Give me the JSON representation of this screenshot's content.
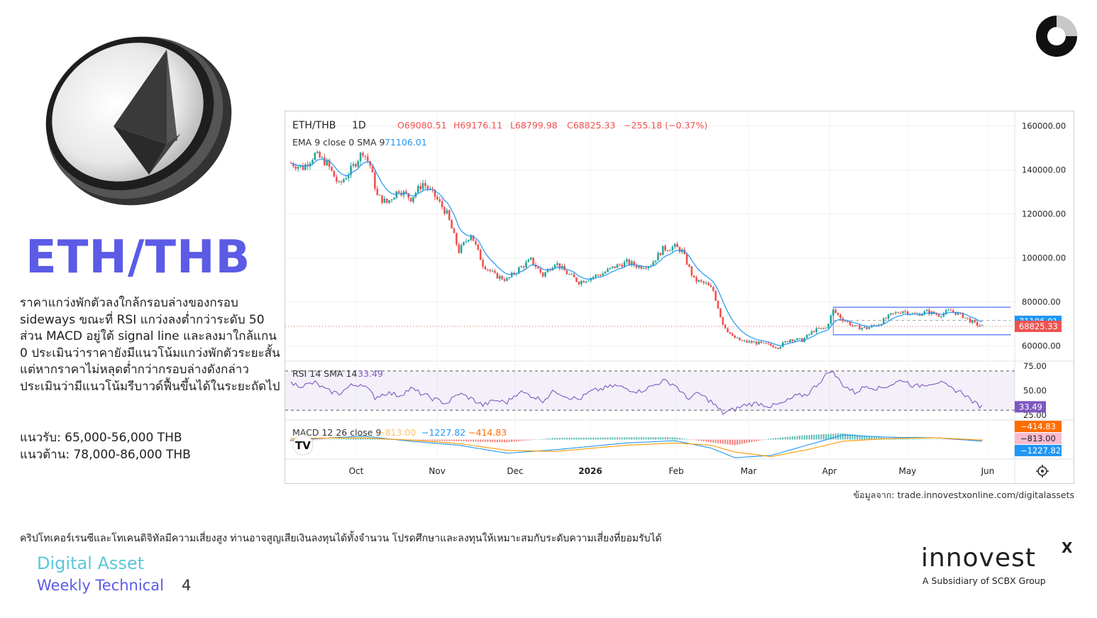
{
  "page": {
    "title": "ETH/THB",
    "description": "ราคาแกว่งพักตัวลงใกล้กรอบล่างของกรอบ sideways ขณะที่ RSI แกว่งลงต่ำกว่าระดับ 50 ส่วน MACD อยู่ใต้ signal line และลงมาใกล้แกน 0 ประเมินว่าราคายังมีแนวโน้มแกว่งพักตัวระยะสั้น แต่หากราคาไม่หลุดต่ำกว่ากรอบล่างดังกล่าว ประเมินว่ามีแนวโน้มรีบาวด์ฟื้นขึ้นได้ในระยะถัดไป",
    "support": "แนวรับ: 65,000-56,000 THB",
    "resistance": "แนวต้าน: 78,000-86,000 THB",
    "source": "ข้อมูลจาก: trade.innovestxonline.com/digitalassets",
    "disclaimer": "คริปโทเคอร์เรนซีและโทเคนดิจิทัลมีความเสี่ยงสูง ท่านอาจสูญเสียเงินลงทุนได้ทั้งจำนวน โปรดศึกษาและลงทุนให้เหมาะสมกับระดับความเสี่ยงที่ยอมรับได้",
    "footer_line1": "Digital Asset",
    "footer_line2": "Weekly Technical",
    "page_number": "4",
    "brand_name": "innovest",
    "brand_x": "X",
    "brand_tagline": "A Subsidiary of SCBX Group",
    "colors": {
      "title": "#5b5be6",
      "footer1": "#5cc6d8",
      "up": "#26a69a",
      "down": "#ef5350",
      "ema": "#2196f3"
    }
  },
  "chart_data": {
    "type": "candlestick",
    "symbol": "ETH/THB",
    "interval": "1D",
    "ohlc": {
      "open": "O69080.51",
      "high": "H69176.11",
      "low": "L68799.98",
      "close": "C68825.33",
      "change": "−255.18 (−0.37%)"
    },
    "ema_label": "EMA 9 close 0 SMA 9",
    "ema_value": "71106.01",
    "rsi_label": "RSI 14 SMA 14",
    "rsi_value": "33.49",
    "macd_label": "MACD 12 26 close 9",
    "macd_values": [
      "−813.00",
      "−1227.82",
      "−414.83"
    ],
    "price_axis": {
      "ticks": [
        "160000.00",
        "140000.00",
        "120000.00",
        "100000.00",
        "80000.00",
        "60000.00"
      ],
      "range": [
        53000,
        164000
      ]
    },
    "rsi_axis": {
      "ticks": [
        "75.00",
        "50.00",
        "25.00"
      ],
      "range": [
        20,
        80
      ],
      "bands": [
        30,
        70
      ]
    },
    "price_badges": {
      "ema": "71106.01",
      "last": "68825.33"
    },
    "rsi_badge": "33.49",
    "macd_badges": [
      "−414.83",
      "−813.00",
      "−1227.82"
    ],
    "x_ticks": [
      "Oct",
      "Nov",
      "Dec",
      "2026",
      "Feb",
      "Mar",
      "Apr",
      "May",
      "Jun"
    ],
    "sideways_range": {
      "top": 77500,
      "mid": 71500,
      "bottom": 65000
    },
    "price_path": [
      [
        0,
        143000
      ],
      [
        5,
        141000
      ],
      [
        10,
        147000
      ],
      [
        15,
        143000
      ],
      [
        20,
        133000
      ],
      [
        25,
        140000
      ],
      [
        30,
        148500
      ],
      [
        33,
        142000
      ],
      [
        36,
        128000
      ],
      [
        40,
        125000
      ],
      [
        45,
        131000
      ],
      [
        50,
        127000
      ],
      [
        55,
        134000
      ],
      [
        60,
        128000
      ],
      [
        65,
        120000
      ],
      [
        70,
        103000
      ],
      [
        75,
        111000
      ],
      [
        80,
        97000
      ],
      [
        85,
        92000
      ],
      [
        90,
        90000
      ],
      [
        95,
        95000
      ],
      [
        100,
        99000
      ],
      [
        105,
        92000
      ],
      [
        110,
        98000
      ],
      [
        115,
        93000
      ],
      [
        120,
        89000
      ],
      [
        125,
        91000
      ],
      [
        130,
        93000
      ],
      [
        135,
        96000
      ],
      [
        140,
        98000
      ],
      [
        145,
        96000
      ],
      [
        150,
        97000
      ],
      [
        155,
        104000
      ],
      [
        160,
        105000
      ],
      [
        163,
        103000
      ],
      [
        168,
        90000
      ],
      [
        173,
        88000
      ],
      [
        176,
        85000
      ],
      [
        180,
        70000
      ],
      [
        184,
        64000
      ],
      [
        188,
        62000
      ],
      [
        193,
        61500
      ],
      [
        198,
        60500
      ],
      [
        203,
        59500
      ],
      [
        208,
        63000
      ],
      [
        213,
        62500
      ],
      [
        218,
        67000
      ],
      [
        223,
        68000
      ],
      [
        226,
        76000
      ],
      [
        230,
        72000
      ],
      [
        235,
        68500
      ],
      [
        240,
        68000
      ],
      [
        245,
        70000
      ],
      [
        250,
        74000
      ],
      [
        255,
        76000
      ],
      [
        260,
        74000
      ],
      [
        265,
        75500
      ],
      [
        270,
        74000
      ],
      [
        275,
        76000
      ],
      [
        280,
        73500
      ],
      [
        285,
        70000
      ],
      [
        288,
        68825
      ]
    ],
    "rsi_path": [
      [
        0,
        57
      ],
      [
        5,
        55
      ],
      [
        10,
        58
      ],
      [
        15,
        50
      ],
      [
        20,
        47
      ],
      [
        25,
        55
      ],
      [
        30,
        57
      ],
      [
        35,
        43
      ],
      [
        40,
        48
      ],
      [
        45,
        45
      ],
      [
        50,
        52
      ],
      [
        55,
        46
      ],
      [
        60,
        41
      ],
      [
        65,
        37
      ],
      [
        70,
        47
      ],
      [
        75,
        42
      ],
      [
        80,
        35
      ],
      [
        85,
        40
      ],
      [
        90,
        38
      ],
      [
        95,
        49
      ],
      [
        100,
        45
      ],
      [
        105,
        40
      ],
      [
        110,
        50
      ],
      [
        115,
        44
      ],
      [
        120,
        41
      ],
      [
        125,
        49
      ],
      [
        130,
        52
      ],
      [
        135,
        55
      ],
      [
        140,
        52
      ],
      [
        145,
        49
      ],
      [
        150,
        54
      ],
      [
        155,
        60
      ],
      [
        160,
        56
      ],
      [
        165,
        42
      ],
      [
        170,
        47
      ],
      [
        175,
        39
      ],
      [
        180,
        27
      ],
      [
        185,
        31
      ],
      [
        190,
        36
      ],
      [
        195,
        37
      ],
      [
        200,
        34
      ],
      [
        205,
        37
      ],
      [
        210,
        44
      ],
      [
        215,
        46
      ],
      [
        220,
        58
      ],
      [
        225,
        71
      ],
      [
        230,
        56
      ],
      [
        235,
        48
      ],
      [
        240,
        55
      ],
      [
        245,
        52
      ],
      [
        250,
        56
      ],
      [
        255,
        61
      ],
      [
        260,
        54
      ],
      [
        265,
        57
      ],
      [
        270,
        59
      ],
      [
        275,
        52
      ],
      [
        280,
        48
      ],
      [
        285,
        37
      ],
      [
        288,
        33.49
      ]
    ],
    "macd_path": [
      [
        0,
        -0.1
      ],
      [
        30,
        0.6
      ],
      [
        50,
        -0.3
      ],
      [
        70,
        -1.0
      ],
      [
        90,
        -2.4
      ],
      [
        110,
        -1.8
      ],
      [
        140,
        -0.6
      ],
      [
        160,
        -0.2
      ],
      [
        175,
        -1.5
      ],
      [
        185,
        -3.2
      ],
      [
        200,
        -2.8
      ],
      [
        215,
        -1.0
      ],
      [
        230,
        0.8
      ],
      [
        250,
        0.4
      ],
      [
        270,
        0.3
      ],
      [
        288,
        -0.3
      ]
    ],
    "signal_path": [
      [
        0,
        0.2
      ],
      [
        30,
        0.3
      ],
      [
        50,
        -0.1
      ],
      [
        70,
        -0.7
      ],
      [
        90,
        -1.9
      ],
      [
        110,
        -2.1
      ],
      [
        140,
        -1.0
      ],
      [
        160,
        -0.6
      ],
      [
        175,
        -1.0
      ],
      [
        185,
        -2.2
      ],
      [
        200,
        -3.0
      ],
      [
        215,
        -1.8
      ],
      [
        230,
        -0.3
      ],
      [
        250,
        0.2
      ],
      [
        270,
        0.3
      ],
      [
        288,
        -0.1
      ]
    ]
  }
}
